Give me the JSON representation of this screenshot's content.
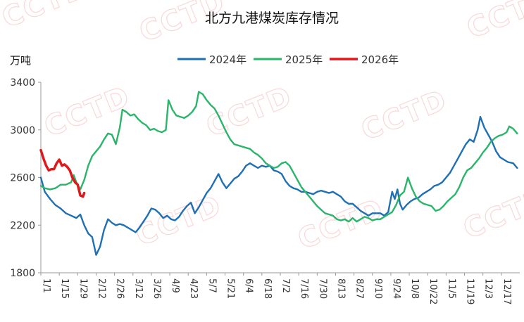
{
  "chart_data": {
    "type": "line",
    "title": "北方九港煤炭库存情况",
    "ylabel": "万吨",
    "ylim": [
      1800,
      3400
    ],
    "yticks": [
      1800,
      2200,
      2600,
      3000,
      3400
    ],
    "xlim": [
      1,
      365
    ],
    "xtick_labels": [
      "1/1",
      "1/15",
      "1/29",
      "2/12",
      "2/26",
      "3/12",
      "3/26",
      "4/9",
      "4/23",
      "5/7",
      "5/21",
      "6/4",
      "6/18",
      "7/2",
      "7/16",
      "7/30",
      "8/13",
      "8/27",
      "9/10",
      "9/24",
      "10/8",
      "10/22",
      "11/5",
      "11/19",
      "12/3",
      "12/17"
    ],
    "xtick_days": [
      1,
      15,
      29,
      43,
      57,
      71,
      85,
      99,
      113,
      127,
      141,
      155,
      169,
      183,
      197,
      211,
      225,
      239,
      253,
      267,
      281,
      295,
      309,
      323,
      337,
      351
    ],
    "legend_position": "top-center",
    "grid": false,
    "watermark": "CCTD",
    "series": [
      {
        "name": "2024年",
        "color": "#1f6fb5",
        "points": [
          [
            1,
            2600
          ],
          [
            4,
            2480
          ],
          [
            8,
            2420
          ],
          [
            12,
            2370
          ],
          [
            16,
            2340
          ],
          [
            20,
            2300
          ],
          [
            24,
            2280
          ],
          [
            28,
            2260
          ],
          [
            31,
            2290
          ],
          [
            34,
            2200
          ],
          [
            37,
            2130
          ],
          [
            40,
            2100
          ],
          [
            43,
            1950
          ],
          [
            46,
            2020
          ],
          [
            49,
            2160
          ],
          [
            52,
            2250
          ],
          [
            55,
            2220
          ],
          [
            58,
            2200
          ],
          [
            61,
            2210
          ],
          [
            64,
            2200
          ],
          [
            67,
            2180
          ],
          [
            70,
            2160
          ],
          [
            73,
            2140
          ],
          [
            76,
            2180
          ],
          [
            79,
            2230
          ],
          [
            82,
            2280
          ],
          [
            85,
            2340
          ],
          [
            88,
            2330
          ],
          [
            91,
            2300
          ],
          [
            94,
            2260
          ],
          [
            97,
            2280
          ],
          [
            100,
            2250
          ],
          [
            103,
            2240
          ],
          [
            106,
            2270
          ],
          [
            109,
            2320
          ],
          [
            112,
            2360
          ],
          [
            115,
            2390
          ],
          [
            118,
            2300
          ],
          [
            121,
            2350
          ],
          [
            124,
            2410
          ],
          [
            127,
            2470
          ],
          [
            130,
            2510
          ],
          [
            133,
            2570
          ],
          [
            136,
            2630
          ],
          [
            139,
            2560
          ],
          [
            142,
            2510
          ],
          [
            145,
            2550
          ],
          [
            148,
            2590
          ],
          [
            151,
            2610
          ],
          [
            154,
            2650
          ],
          [
            157,
            2700
          ],
          [
            160,
            2720
          ],
          [
            163,
            2700
          ],
          [
            166,
            2680
          ],
          [
            169,
            2700
          ],
          [
            172,
            2690
          ],
          [
            175,
            2700
          ],
          [
            178,
            2660
          ],
          [
            181,
            2650
          ],
          [
            184,
            2630
          ],
          [
            187,
            2570
          ],
          [
            190,
            2530
          ],
          [
            193,
            2510
          ],
          [
            196,
            2500
          ],
          [
            199,
            2480
          ],
          [
            202,
            2480
          ],
          [
            205,
            2470
          ],
          [
            208,
            2460
          ],
          [
            211,
            2480
          ],
          [
            214,
            2490
          ],
          [
            217,
            2480
          ],
          [
            220,
            2470
          ],
          [
            223,
            2480
          ],
          [
            226,
            2460
          ],
          [
            229,
            2440
          ],
          [
            232,
            2400
          ],
          [
            235,
            2380
          ],
          [
            238,
            2380
          ],
          [
            241,
            2350
          ],
          [
            244,
            2320
          ],
          [
            247,
            2300
          ],
          [
            250,
            2280
          ],
          [
            253,
            2300
          ],
          [
            256,
            2300
          ],
          [
            259,
            2300
          ],
          [
            262,
            2280
          ],
          [
            265,
            2310
          ],
          [
            268,
            2480
          ],
          [
            270,
            2420
          ],
          [
            272,
            2500
          ],
          [
            274,
            2380
          ],
          [
            276,
            2330
          ],
          [
            279,
            2370
          ],
          [
            282,
            2400
          ],
          [
            285,
            2420
          ],
          [
            288,
            2430
          ],
          [
            291,
            2460
          ],
          [
            294,
            2480
          ],
          [
            297,
            2500
          ],
          [
            300,
            2530
          ],
          [
            303,
            2540
          ],
          [
            306,
            2560
          ],
          [
            309,
            2600
          ],
          [
            312,
            2640
          ],
          [
            315,
            2700
          ],
          [
            318,
            2760
          ],
          [
            321,
            2820
          ],
          [
            324,
            2880
          ],
          [
            327,
            2920
          ],
          [
            330,
            2900
          ],
          [
            333,
            3000
          ],
          [
            335,
            3110
          ],
          [
            338,
            3020
          ],
          [
            341,
            2960
          ],
          [
            344,
            2900
          ],
          [
            347,
            2820
          ],
          [
            350,
            2770
          ],
          [
            353,
            2750
          ],
          [
            356,
            2730
          ],
          [
            360,
            2720
          ],
          [
            363,
            2680
          ]
        ]
      },
      {
        "name": "2025年",
        "color": "#2ab56a",
        "points": [
          [
            1,
            2530
          ],
          [
            4,
            2510
          ],
          [
            8,
            2500
          ],
          [
            12,
            2510
          ],
          [
            16,
            2540
          ],
          [
            20,
            2540
          ],
          [
            24,
            2560
          ],
          [
            26,
            2620
          ],
          [
            28,
            2560
          ],
          [
            31,
            2500
          ],
          [
            34,
            2580
          ],
          [
            37,
            2700
          ],
          [
            40,
            2780
          ],
          [
            43,
            2820
          ],
          [
            46,
            2860
          ],
          [
            49,
            2920
          ],
          [
            52,
            2970
          ],
          [
            55,
            2960
          ],
          [
            58,
            2880
          ],
          [
            61,
            3020
          ],
          [
            63,
            3170
          ],
          [
            66,
            3150
          ],
          [
            69,
            3120
          ],
          [
            72,
            3130
          ],
          [
            75,
            3090
          ],
          [
            78,
            3060
          ],
          [
            81,
            3040
          ],
          [
            84,
            3000
          ],
          [
            87,
            3010
          ],
          [
            90,
            2990
          ],
          [
            93,
            2980
          ],
          [
            96,
            3000
          ],
          [
            98,
            3250
          ],
          [
            101,
            3170
          ],
          [
            104,
            3120
          ],
          [
            107,
            3110
          ],
          [
            110,
            3100
          ],
          [
            113,
            3120
          ],
          [
            116,
            3150
          ],
          [
            119,
            3200
          ],
          [
            121,
            3320
          ],
          [
            124,
            3300
          ],
          [
            127,
            3250
          ],
          [
            130,
            3210
          ],
          [
            133,
            3180
          ],
          [
            136,
            3120
          ],
          [
            139,
            3050
          ],
          [
            142,
            2980
          ],
          [
            145,
            2920
          ],
          [
            148,
            2880
          ],
          [
            151,
            2870
          ],
          [
            154,
            2860
          ],
          [
            157,
            2850
          ],
          [
            160,
            2840
          ],
          [
            163,
            2810
          ],
          [
            166,
            2790
          ],
          [
            169,
            2760
          ],
          [
            172,
            2720
          ],
          [
            175,
            2700
          ],
          [
            178,
            2680
          ],
          [
            181,
            2690
          ],
          [
            184,
            2720
          ],
          [
            187,
            2730
          ],
          [
            190,
            2700
          ],
          [
            193,
            2640
          ],
          [
            196,
            2580
          ],
          [
            199,
            2520
          ],
          [
            202,
            2480
          ],
          [
            205,
            2440
          ],
          [
            208,
            2400
          ],
          [
            211,
            2360
          ],
          [
            214,
            2330
          ],
          [
            217,
            2300
          ],
          [
            220,
            2290
          ],
          [
            223,
            2280
          ],
          [
            226,
            2250
          ],
          [
            229,
            2240
          ],
          [
            232,
            2250
          ],
          [
            235,
            2230
          ],
          [
            238,
            2260
          ],
          [
            241,
            2230
          ],
          [
            244,
            2250
          ],
          [
            247,
            2270
          ],
          [
            250,
            2260
          ],
          [
            253,
            2240
          ],
          [
            256,
            2250
          ],
          [
            259,
            2250
          ],
          [
            262,
            2270
          ],
          [
            265,
            2290
          ],
          [
            268,
            2310
          ],
          [
            271,
            2370
          ],
          [
            274,
            2450
          ],
          [
            277,
            2480
          ],
          [
            280,
            2600
          ],
          [
            283,
            2510
          ],
          [
            286,
            2440
          ],
          [
            289,
            2400
          ],
          [
            292,
            2380
          ],
          [
            295,
            2370
          ],
          [
            298,
            2360
          ],
          [
            301,
            2320
          ],
          [
            304,
            2330
          ],
          [
            307,
            2360
          ],
          [
            310,
            2400
          ],
          [
            313,
            2430
          ],
          [
            316,
            2460
          ],
          [
            319,
            2520
          ],
          [
            322,
            2600
          ],
          [
            325,
            2660
          ],
          [
            328,
            2680
          ],
          [
            331,
            2720
          ],
          [
            334,
            2760
          ],
          [
            337,
            2810
          ],
          [
            340,
            2850
          ],
          [
            343,
            2900
          ],
          [
            346,
            2930
          ],
          [
            349,
            2950
          ],
          [
            352,
            2960
          ],
          [
            355,
            2980
          ],
          [
            357,
            3030
          ],
          [
            360,
            3010
          ],
          [
            363,
            2970
          ]
        ]
      },
      {
        "name": "2026年",
        "color": "#e0181c",
        "points": [
          [
            1,
            2830
          ],
          [
            3,
            2760
          ],
          [
            5,
            2700
          ],
          [
            7,
            2660
          ],
          [
            9,
            2670
          ],
          [
            11,
            2670
          ],
          [
            13,
            2720
          ],
          [
            15,
            2750
          ],
          [
            17,
            2700
          ],
          [
            19,
            2710
          ],
          [
            21,
            2690
          ],
          [
            23,
            2660
          ],
          [
            25,
            2600
          ],
          [
            27,
            2560
          ],
          [
            29,
            2540
          ],
          [
            31,
            2450
          ],
          [
            33,
            2440
          ],
          [
            34,
            2470
          ]
        ]
      }
    ]
  }
}
